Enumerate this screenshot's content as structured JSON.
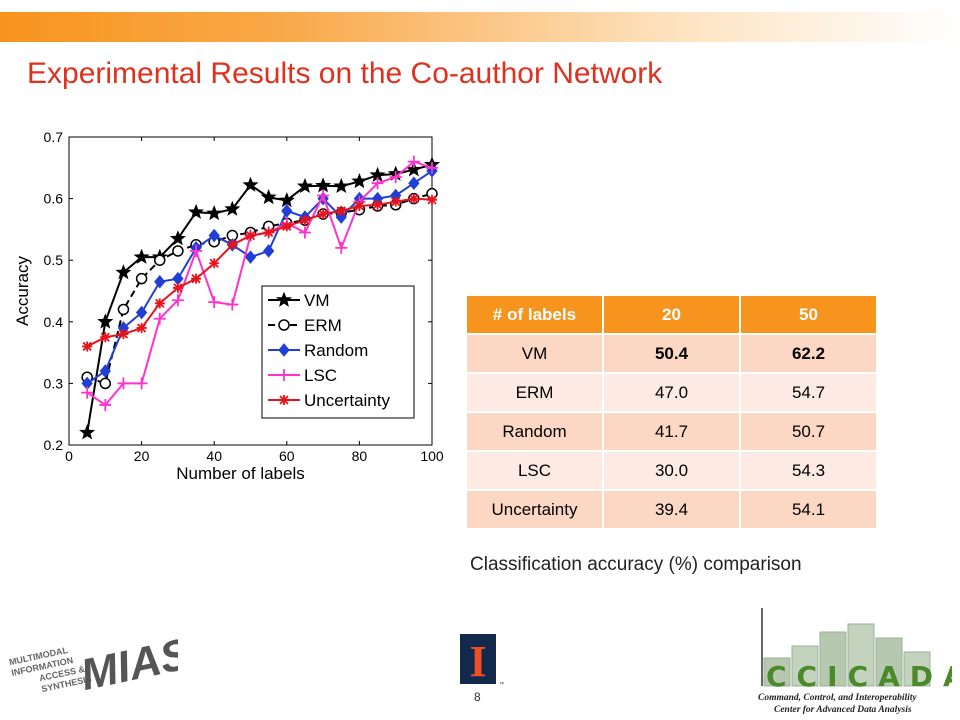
{
  "slide": {
    "title": "Experimental Results on the Co-author Network",
    "caption": "Classification accuracy (%) comparison",
    "page_number": "8",
    "colors": {
      "title": "#e0301e",
      "accent": "#f7941d"
    }
  },
  "table": {
    "headers": [
      "# of labels",
      "20",
      "50"
    ],
    "rows": [
      {
        "method": "VM",
        "v20": "50.4",
        "v50": "62.2",
        "bold": true
      },
      {
        "method": "ERM",
        "v20": "47.0",
        "v50": "54.7",
        "bold": false
      },
      {
        "method": "Random",
        "v20": "41.7",
        "v50": "50.7",
        "bold": false
      },
      {
        "method": "LSC",
        "v20": "30.0",
        "v50": "54.3",
        "bold": false
      },
      {
        "method": "Uncertainty",
        "v20": "39.4",
        "v50": "54.1",
        "bold": false
      }
    ]
  },
  "logos": {
    "left": "MIAS",
    "left_sub": [
      "MULTIMODAL",
      "INFORMATION",
      "ACCESS &",
      "SYNTHESIS"
    ],
    "middle": "I",
    "right": "CCICADA",
    "right_sub": [
      "Command, Control, and Interoperability",
      "Center for Advanced Data Analysis"
    ]
  },
  "chart_data": {
    "type": "line",
    "xlabel": "Number of labels",
    "ylabel": "Accuracy",
    "xlim": [
      0,
      100
    ],
    "ylim": [
      0.2,
      0.7
    ],
    "xticks": [
      "0",
      "20",
      "40",
      "60",
      "80",
      "100"
    ],
    "yticks": [
      "0.2",
      "0.3",
      "0.4",
      "0.5",
      "0.6",
      "0.7"
    ],
    "legend_position": "center-right",
    "x": [
      5,
      10,
      15,
      20,
      25,
      30,
      35,
      40,
      45,
      50,
      55,
      60,
      65,
      70,
      75,
      80,
      85,
      90,
      95,
      100
    ],
    "series": [
      {
        "name": "VM",
        "color": "#000000",
        "marker": "star",
        "dash": "solid",
        "values": [
          0.22,
          0.4,
          0.48,
          0.505,
          0.505,
          0.535,
          0.578,
          0.576,
          0.583,
          0.622,
          0.602,
          0.597,
          0.62,
          0.621,
          0.62,
          0.628,
          0.638,
          0.64,
          0.647,
          0.655
        ]
      },
      {
        "name": "ERM",
        "color": "#000000",
        "marker": "circle",
        "dash": "dashed",
        "values": [
          0.31,
          0.3,
          0.42,
          0.47,
          0.5,
          0.515,
          0.525,
          0.53,
          0.54,
          0.545,
          0.555,
          0.56,
          0.565,
          0.575,
          0.577,
          0.582,
          0.588,
          0.59,
          0.6,
          0.608
        ]
      },
      {
        "name": "Random",
        "color": "#1f3fd6",
        "marker": "diamond",
        "dash": "solid",
        "values": [
          0.3,
          0.32,
          0.39,
          0.415,
          0.465,
          0.47,
          0.52,
          0.54,
          0.525,
          0.505,
          0.515,
          0.58,
          0.57,
          0.6,
          0.57,
          0.6,
          0.6,
          0.605,
          0.625,
          0.645
        ]
      },
      {
        "name": "LSC",
        "color": "#ff33cc",
        "marker": "plus",
        "dash": "solid",
        "values": [
          0.285,
          0.265,
          0.3,
          0.3,
          0.405,
          0.435,
          0.515,
          0.432,
          0.428,
          0.54,
          0.545,
          0.56,
          0.545,
          0.605,
          0.52,
          0.595,
          0.625,
          0.635,
          0.66,
          0.65
        ]
      },
      {
        "name": "Uncertainty",
        "color": "#e8141d",
        "marker": "asterisk",
        "dash": "solid",
        "values": [
          0.36,
          0.375,
          0.38,
          0.39,
          0.43,
          0.455,
          0.47,
          0.495,
          0.525,
          0.54,
          0.545,
          0.555,
          0.565,
          0.575,
          0.58,
          0.588,
          0.59,
          0.595,
          0.6,
          0.598
        ]
      }
    ]
  }
}
